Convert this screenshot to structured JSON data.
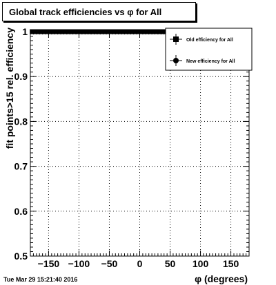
{
  "chart_data": {
    "type": "scatter",
    "title": "Global track efficiencies vs φ for All",
    "xlabel": "φ (degrees)",
    "ylabel": "fit points>15 rel. efficiency",
    "xlim": [
      -180,
      180
    ],
    "ylim": [
      0.5,
      1.0
    ],
    "x_ticks": [
      -150,
      -100,
      -50,
      0,
      50,
      100,
      150
    ],
    "x_tick_labels": [
      "−150",
      "−100",
      "−50",
      "0",
      "50",
      "100",
      "150"
    ],
    "y_ticks": [
      0.5,
      0.6,
      0.7,
      0.8,
      0.9,
      1.0
    ],
    "y_tick_labels": [
      "0.5",
      "0.6",
      "0.7",
      "0.8",
      "0.9",
      "1"
    ],
    "grid": true,
    "legend_position": "top-right",
    "series": [
      {
        "name": "Old efficiency  for All",
        "marker": "square",
        "color": "#000000",
        "x": [
          -177,
          -171,
          -165,
          -159,
          -153,
          -147,
          -141,
          -135,
          -129,
          -123,
          -117,
          -111,
          -105,
          -99,
          -93,
          -87,
          -81,
          -75,
          -69,
          -63,
          -57,
          -51,
          -45,
          -39,
          -33,
          -27,
          -21,
          -15,
          -9,
          -3,
          3,
          9,
          15,
          21,
          27,
          33,
          39,
          45,
          51,
          57,
          63,
          69,
          75,
          81,
          87,
          93,
          99,
          105,
          111,
          117,
          123,
          129,
          135,
          141,
          147,
          153,
          159,
          165,
          171,
          177
        ],
        "y": [
          1,
          1,
          1,
          1,
          1,
          1,
          1,
          1,
          1,
          1,
          1,
          1,
          1,
          1,
          1,
          1,
          1,
          1,
          1,
          1,
          1,
          1,
          1,
          1,
          1,
          1,
          1,
          1,
          1,
          1,
          1,
          1,
          1,
          1,
          1,
          1,
          1,
          1,
          1,
          1,
          1,
          1,
          1,
          1,
          1,
          1,
          1,
          1,
          1,
          1,
          1,
          1,
          1,
          1,
          1,
          1,
          1,
          1,
          1,
          1
        ]
      },
      {
        "name": "New efficiency  for All",
        "marker": "circle",
        "color": "#000000",
        "x": [
          -177,
          -171,
          -165,
          -159,
          -153,
          -147,
          -141,
          -135,
          -129,
          -123,
          -117,
          -111,
          -105,
          -99,
          -93,
          -87,
          -81,
          -75,
          -69,
          -63,
          -57,
          -51,
          -45,
          -39,
          -33,
          -27,
          -21,
          -15,
          -9,
          -3,
          3,
          9,
          15,
          21,
          27,
          33,
          39,
          45,
          51,
          57,
          63,
          69,
          75,
          81,
          87,
          93,
          99,
          105,
          111,
          117,
          123,
          129,
          135,
          141,
          147,
          153,
          159,
          165,
          171,
          177
        ],
        "y": [
          1,
          1,
          1,
          1,
          1,
          1,
          1,
          1,
          1,
          1,
          1,
          1,
          1,
          1,
          1,
          1,
          1,
          1,
          1,
          1,
          1,
          1,
          1,
          1,
          1,
          1,
          1,
          1,
          1,
          1,
          1,
          1,
          1,
          1,
          1,
          1,
          1,
          1,
          1,
          1,
          1,
          1,
          1,
          1,
          1,
          1,
          1,
          1,
          1,
          1,
          1,
          1,
          1,
          1,
          1,
          1,
          1,
          1,
          1,
          1
        ]
      }
    ]
  },
  "footer": {
    "timestamp": "Tue Mar 29 15:21:40 2016"
  }
}
